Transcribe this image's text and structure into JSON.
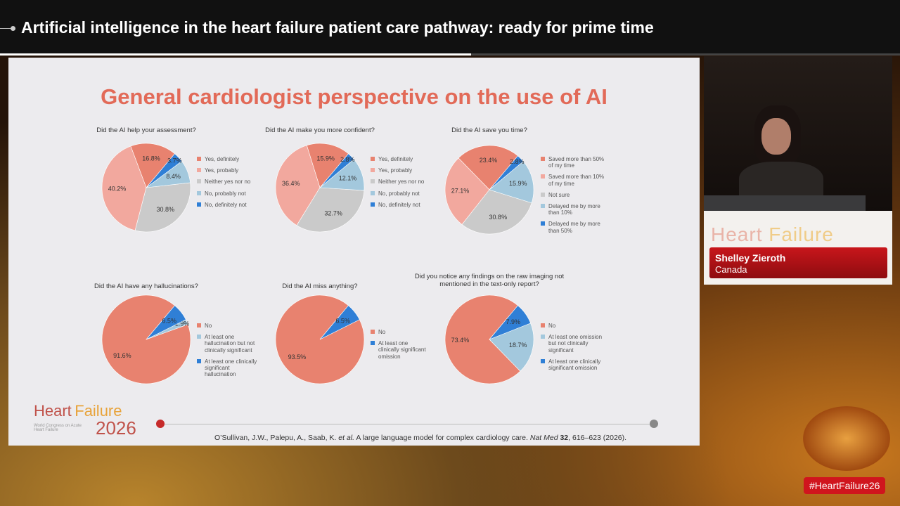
{
  "header": {
    "title": "Artificial intelligence in the heart failure patient care pathway: ready for prime time"
  },
  "slide": {
    "title": "General cardiologist perspective on the use of AI",
    "logo": {
      "word1": "Heart",
      "word2": "Failure",
      "year": "2026",
      "subtitle": "World Congress on Acute Heart Failure"
    },
    "citation": {
      "authors": "O’Sullivan, J.W., Palepu, A., Saab, K.",
      "etal": "et al.",
      "article": "A large language model for complex cardiology care.",
      "journal": "Nat Med",
      "volume": "32",
      "pages": ", 616–623 (2026)."
    }
  },
  "chart_data": [
    {
      "type": "pie",
      "title": "Did the AI help your assessment?",
      "categories": [
        "Yes, definitely",
        "Yes, probably",
        "Neither yes nor no",
        "No, probably not",
        "No, definitely not"
      ],
      "values": [
        16.8,
        40.2,
        30.8,
        8.4,
        3.7
      ],
      "value_labels": [
        "16.8%",
        "40.2%",
        "30.8%",
        "8.4%",
        "3.7%"
      ],
      "colors": [
        "#e8826f",
        "#f2a89e",
        "#cacaca",
        "#a3c8dd",
        "#2f7fd6"
      ]
    },
    {
      "type": "pie",
      "title": "Did the AI make you more confident?",
      "categories": [
        "Yes, definitely",
        "Yes, probably",
        "Neither yes nor no",
        "No, probably not",
        "No, definitely not"
      ],
      "values": [
        15.9,
        36.4,
        32.7,
        12.1,
        2.8
      ],
      "value_labels": [
        "15.9%",
        "36.4%",
        "32.7%",
        "12.1%",
        "2.8%"
      ],
      "colors": [
        "#e8826f",
        "#f2a89e",
        "#cacaca",
        "#a3c8dd",
        "#2f7fd6"
      ]
    },
    {
      "type": "pie",
      "title": "Did the AI save you time?",
      "categories": [
        "Saved more than 50% of my time",
        "Saved more than 10% of my time",
        "Not sure",
        "Delayed me by more than 10%",
        "Delayed me by more than 50%"
      ],
      "values": [
        23.4,
        27.1,
        30.8,
        15.9,
        2.8
      ],
      "value_labels": [
        "23.4%",
        "27.1%",
        "30.8%",
        "15.9%",
        "2.8%"
      ],
      "colors": [
        "#e8826f",
        "#f2a89e",
        "#cacaca",
        "#a3c8dd",
        "#2f7fd6"
      ]
    },
    {
      "type": "pie",
      "title": "Did the AI have any hallucinations?",
      "categories": [
        "No",
        "At least one hallucination but not clinically significant",
        "At least one clinically significant hallucination"
      ],
      "values": [
        91.6,
        1.9,
        6.5
      ],
      "value_labels": [
        "91.6%",
        "1.9%",
        "6.5%"
      ],
      "colors": [
        "#e8826f",
        "#a3c8dd",
        "#2f7fd6"
      ]
    },
    {
      "type": "pie",
      "title": "Did the AI miss anything?",
      "categories": [
        "No",
        "At least one clinically significant omission"
      ],
      "values": [
        93.5,
        6.5
      ],
      "value_labels": [
        "93.5%",
        "6.5%"
      ],
      "colors": [
        "#e8826f",
        "#2f7fd6"
      ]
    },
    {
      "type": "pie",
      "title": "Did you notice any findings on the raw imaging not mentioned in the text-only report?",
      "categories": [
        "No",
        "At least one omission but not clinically significant",
        "At least one clinically significant omission"
      ],
      "values": [
        73.4,
        18.7,
        7.9
      ],
      "value_labels": [
        "73.4%",
        "18.7%",
        "7.9%"
      ],
      "colors": [
        "#e8826f",
        "#a3c8dd",
        "#2f7fd6"
      ]
    }
  ],
  "speaker": {
    "name": "Shelley Zieroth",
    "location": "Canada"
  },
  "hashtag": "#HeartFailure26"
}
